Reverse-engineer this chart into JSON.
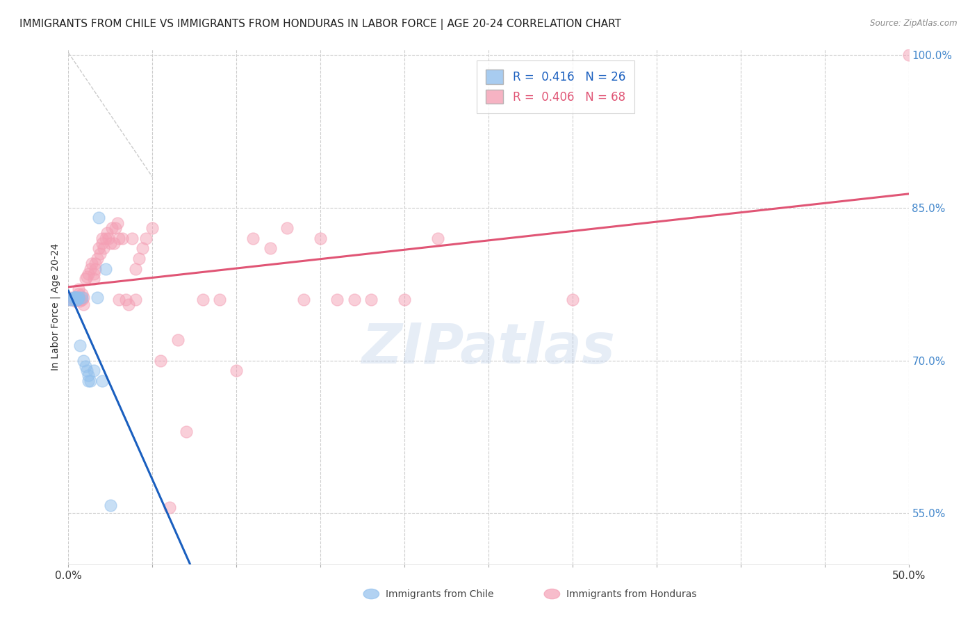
{
  "title": "IMMIGRANTS FROM CHILE VS IMMIGRANTS FROM HONDURAS IN LABOR FORCE | AGE 20-24 CORRELATION CHART",
  "source": "Source: ZipAtlas.com",
  "ylabel": "In Labor Force | Age 20-24",
  "x_min": 0.0,
  "x_max": 0.5,
  "y_min": 0.5,
  "y_max": 1.005,
  "yticks": [
    0.55,
    0.7,
    0.85,
    1.0
  ],
  "ytick_labels": [
    "55.0%",
    "70.0%",
    "85.0%",
    "100.0%"
  ],
  "xtick_labels_shown": [
    "0.0%",
    "50.0%"
  ],
  "xtick_positions_shown": [
    0.0,
    0.5
  ],
  "xtick_minor": [
    0.0,
    0.05,
    0.1,
    0.15,
    0.2,
    0.25,
    0.3,
    0.35,
    0.4,
    0.45,
    0.5
  ],
  "chile_R": 0.416,
  "chile_N": 26,
  "honduras_R": 0.406,
  "honduras_N": 68,
  "chile_color": "#92C0ED",
  "honduras_color": "#F4A0B5",
  "chile_line_color": "#1A5FBF",
  "honduras_line_color": "#E05575",
  "background_color": "#ffffff",
  "grid_color": "#cccccc",
  "title_fontsize": 11,
  "axis_label_fontsize": 10,
  "tick_fontsize": 10,
  "legend_fontsize": 12,
  "right_tick_color": "#4488CC",
  "chile_x": [
    0.001,
    0.002,
    0.003,
    0.004,
    0.004,
    0.004,
    0.004,
    0.004,
    0.005,
    0.005,
    0.006,
    0.006,
    0.007,
    0.008,
    0.009,
    0.01,
    0.011,
    0.012,
    0.012,
    0.013,
    0.015,
    0.017,
    0.018,
    0.02,
    0.022,
    0.025
  ],
  "chile_y": [
    0.76,
    0.76,
    0.762,
    0.762,
    0.762,
    0.762,
    0.762,
    0.762,
    0.76,
    0.76,
    0.762,
    0.762,
    0.715,
    0.762,
    0.7,
    0.694,
    0.69,
    0.685,
    0.68,
    0.68,
    0.69,
    0.762,
    0.84,
    0.68,
    0.79,
    0.558
  ],
  "honduras_x": [
    0.001,
    0.002,
    0.003,
    0.004,
    0.005,
    0.005,
    0.006,
    0.006,
    0.007,
    0.007,
    0.008,
    0.008,
    0.009,
    0.009,
    0.01,
    0.011,
    0.012,
    0.013,
    0.014,
    0.015,
    0.015,
    0.016,
    0.016,
    0.017,
    0.018,
    0.019,
    0.02,
    0.02,
    0.021,
    0.022,
    0.023,
    0.024,
    0.025,
    0.026,
    0.027,
    0.028,
    0.029,
    0.03,
    0.03,
    0.032,
    0.034,
    0.036,
    0.038,
    0.04,
    0.04,
    0.042,
    0.044,
    0.046,
    0.05,
    0.055,
    0.06,
    0.065,
    0.07,
    0.08,
    0.09,
    0.1,
    0.11,
    0.12,
    0.13,
    0.14,
    0.15,
    0.16,
    0.17,
    0.18,
    0.2,
    0.22,
    0.3,
    0.5
  ],
  "honduras_y": [
    0.76,
    0.762,
    0.76,
    0.758,
    0.762,
    0.76,
    0.765,
    0.77,
    0.76,
    0.758,
    0.765,
    0.76,
    0.755,
    0.762,
    0.78,
    0.782,
    0.785,
    0.79,
    0.795,
    0.78,
    0.785,
    0.79,
    0.795,
    0.8,
    0.81,
    0.805,
    0.82,
    0.815,
    0.81,
    0.82,
    0.825,
    0.82,
    0.815,
    0.83,
    0.815,
    0.83,
    0.835,
    0.82,
    0.76,
    0.82,
    0.76,
    0.755,
    0.82,
    0.76,
    0.79,
    0.8,
    0.81,
    0.82,
    0.83,
    0.7,
    0.556,
    0.72,
    0.63,
    0.76,
    0.76,
    0.69,
    0.82,
    0.81,
    0.83,
    0.76,
    0.82,
    0.76,
    0.76,
    0.76,
    0.76,
    0.82,
    0.76,
    1.0
  ]
}
